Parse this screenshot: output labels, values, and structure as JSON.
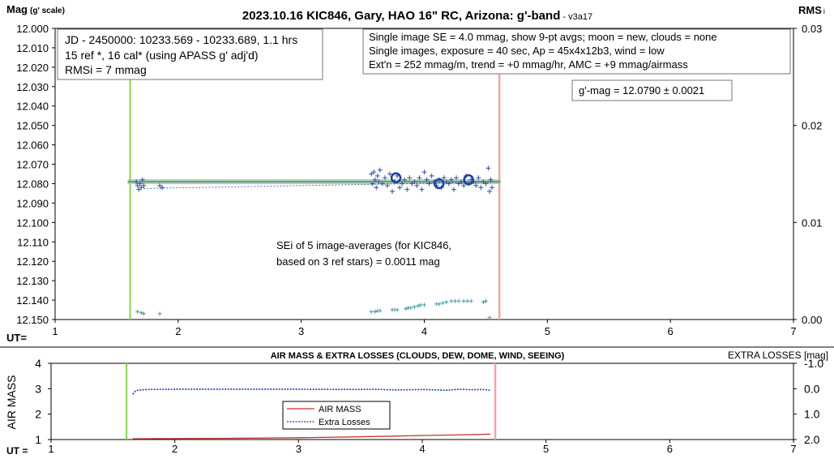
{
  "chart_data": [
    {
      "type": "scatter",
      "title": "2023.10.16 KIC846, Gary, HAO 16\" RC, Arizona: g'-band",
      "version_tag": " - v3a17",
      "ylabel": "Mag",
      "ylabel_suffix": "(g' scale)",
      "y2label": "RMS",
      "y2label_suffix": "i",
      "xlabel": "UT=",
      "xlim": [
        1,
        7
      ],
      "ylim": [
        12.0,
        12.15
      ],
      "y2lim": [
        0.0,
        0.03
      ],
      "y_reversed": true,
      "x_ticks": [
        1,
        2,
        3,
        4,
        5,
        6,
        7
      ],
      "y_ticks": [
        "12.000",
        "12.010",
        "12.020",
        "12.030",
        "12.040",
        "12.050",
        "12.060",
        "12.070",
        "12.080",
        "12.090",
        "12.100",
        "12.110",
        "12.120",
        "12.130",
        "12.140",
        "12.150"
      ],
      "y2_ticks": [
        "0.00",
        "0.01",
        "0.02",
        "0.03"
      ],
      "grid": false,
      "start_marker_ut": 1.61,
      "end_marker_ut": 4.61,
      "fit_mag": 12.079,
      "info_box_1": [
        "JD - 2450000: 10233.569 - 10233.689, 1.1 hrs",
        "15 ref *, 16 cal* (using APASS g' adj'd)",
        "RMSi = 7 mmag"
      ],
      "info_box_2": [
        "Single image SE = 4.0 mmag, show  9-pt avgs; moon = new, clouds = none",
        "Single images, exposure = 40 sec, Ap = 45x4x12b3, wind = low",
        "Ext'n = 252 mmag/m, trend = +0 mmag/hr, AMC = +9 mmag/airmass"
      ],
      "result_box": "g'-mag = 12.0790 ± 0.0021",
      "sei_box": [
        "SEi of 5 image-averages (for KIC846,",
        "based on 3 ref stars) = 0.0011 mag"
      ],
      "series": [
        {
          "marker": "+",
          "color": "#2f4f9f",
          "x": [
            1.66,
            1.67,
            1.68,
            1.69,
            1.7,
            1.71,
            1.72,
            1.85,
            1.87,
            3.57,
            3.58,
            3.59,
            3.6,
            3.61,
            3.62,
            3.63,
            3.64,
            3.66,
            3.68,
            3.7,
            3.72,
            3.74,
            3.76,
            3.78,
            3.8,
            3.82,
            3.84,
            3.86,
            3.88,
            3.9,
            3.92,
            3.94,
            3.96,
            3.98,
            4.0,
            4.02,
            4.04,
            4.06,
            4.08,
            4.1,
            4.12,
            4.14,
            4.16,
            4.18,
            4.2,
            4.22,
            4.24,
            4.26,
            4.28,
            4.3,
            4.32,
            4.34,
            4.36,
            4.38,
            4.4,
            4.42,
            4.44,
            4.46,
            4.48,
            4.5,
            4.52,
            4.53,
            4.54,
            4.55
          ],
          "y": [
            12.079,
            12.081,
            12.083,
            12.08,
            12.082,
            12.078,
            12.081,
            12.081,
            12.082,
            12.075,
            12.08,
            12.074,
            12.078,
            12.082,
            12.076,
            12.079,
            12.073,
            12.08,
            12.077,
            12.081,
            12.075,
            12.084,
            12.079,
            12.076,
            12.082,
            12.08,
            12.078,
            12.083,
            12.077,
            12.08,
            12.079,
            12.081,
            12.077,
            12.083,
            12.074,
            12.078,
            12.08,
            12.076,
            12.079,
            12.081,
            12.078,
            12.082,
            12.077,
            12.079,
            12.08,
            12.078,
            12.083,
            12.077,
            12.08,
            12.079,
            12.081,
            12.076,
            12.08,
            12.078,
            12.079,
            12.081,
            12.077,
            12.082,
            12.079,
            12.08,
            12.072,
            12.084,
            12.078,
            12.082
          ]
        },
        {
          "marker": "circle",
          "name": "image averages",
          "color": "#1f3fa0",
          "x": [
            1.69,
            3.77,
            4.12,
            4.36,
            4.55
          ],
          "y": [
            12.081,
            12.077,
            12.08,
            12.078,
            12.079
          ]
        },
        {
          "marker": "+",
          "name": "RMSi",
          "axis": "right",
          "color": "#4a9aa8",
          "x": [
            1.67,
            1.7,
            1.72,
            1.85,
            3.57,
            3.6,
            3.62,
            3.64,
            3.74,
            3.76,
            3.78,
            3.85,
            3.87,
            3.89,
            3.92,
            3.95,
            3.97,
            4.0,
            4.1,
            4.12,
            4.15,
            4.18,
            4.22,
            4.25,
            4.28,
            4.32,
            4.35,
            4.38,
            4.48,
            4.5,
            4.53
          ],
          "y": [
            0.0008,
            0.0007,
            0.0006,
            0.0006,
            0.0008,
            0.0008,
            0.0009,
            0.0009,
            0.001,
            0.001,
            0.001,
            0.0011,
            0.0012,
            0.0012,
            0.0013,
            0.0014,
            0.0015,
            0.0015,
            0.0016,
            0.0016,
            0.0017,
            0.0018,
            0.0019,
            0.0019,
            0.0019,
            0.0019,
            0.0019,
            0.0019,
            0.0018,
            0.0019,
            0.0002
          ]
        }
      ]
    },
    {
      "type": "line",
      "title": "AIR MASS & EXTRA LOSSES (CLOUDS, DEW, DOME, WIND, SEEING)",
      "ylabel": "AIR MASS",
      "y2label": "EXTRA LOSSES [mag]",
      "xlabel": "UT =",
      "xlim": [
        1,
        7
      ],
      "ylim": [
        1,
        4
      ],
      "y2lim": [
        2.0,
        -1.0
      ],
      "x_ticks": [
        1,
        2,
        3,
        4,
        5,
        6,
        7
      ],
      "y_ticks": [
        "1",
        "2",
        "3",
        "4"
      ],
      "y2_ticks": [
        "2.0",
        "1.0",
        "0.0",
        "-1.0"
      ],
      "grid": false,
      "start_marker_ut": 1.61,
      "end_marker_ut": 4.59,
      "legend": [
        "AIR MASS",
        "Extra Losses"
      ],
      "legend_position": "center",
      "series": [
        {
          "name": "AIR MASS",
          "color": "#c0392b",
          "x": [
            1.66,
            2.0,
            2.5,
            3.0,
            3.5,
            3.75,
            4.0,
            4.25,
            4.55
          ],
          "y": [
            1.03,
            1.04,
            1.05,
            1.07,
            1.11,
            1.13,
            1.16,
            1.18,
            1.21
          ]
        },
        {
          "name": "Extra Losses",
          "axis": "right",
          "color": "#1f3f9f",
          "x": [
            1.66,
            1.68,
            1.7,
            1.75,
            1.8,
            2.0,
            2.5,
            3.0,
            3.5,
            3.6,
            3.8,
            4.0,
            4.2,
            4.3,
            4.4,
            4.5,
            4.55
          ],
          "y": [
            0.22,
            0.1,
            0.06,
            0.04,
            0.03,
            0.02,
            0.02,
            0.02,
            0.03,
            0.02,
            0.05,
            0.03,
            0.06,
            0.02,
            0.04,
            0.03,
            0.07
          ]
        }
      ]
    }
  ],
  "colors": {
    "start_line": "#8ccf55",
    "end_line": "#f4a3a6",
    "fit_band": "#9fc3a8",
    "fit_line": "#2e7d5a"
  }
}
